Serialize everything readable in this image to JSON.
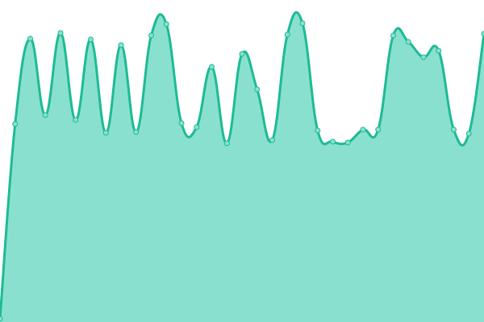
{
  "chart_data": {
    "type": "area",
    "title": "",
    "xlabel": "",
    "ylabel": "",
    "x": [
      0,
      1,
      2,
      3,
      4,
      5,
      6,
      7,
      8,
      9,
      10,
      11,
      12,
      13,
      14,
      15,
      16,
      17,
      18,
      19,
      20,
      21,
      22,
      23,
      24,
      25,
      26,
      27,
      28,
      29,
      30,
      31,
      32
    ],
    "series": [
      {
        "values": [
          4,
          246,
          352,
          257,
          359,
          251,
          351,
          235,
          344,
          236,
          356,
          370,
          247,
          242,
          317,
          222,
          333,
          289,
          226,
          357,
          371,
          238,
          224,
          223,
          239,
          239,
          356,
          348,
          329,
          337,
          239,
          234,
          358
        ]
      }
    ],
    "ylim": [
      0,
      400
    ],
    "grid": false,
    "axes_visible": false,
    "smooth": true,
    "colors": {
      "line": "#1dbb94",
      "fill": "#8ae0cf",
      "point_fill": "#8ae0cf",
      "point_stroke": "#1dbb94"
    }
  }
}
